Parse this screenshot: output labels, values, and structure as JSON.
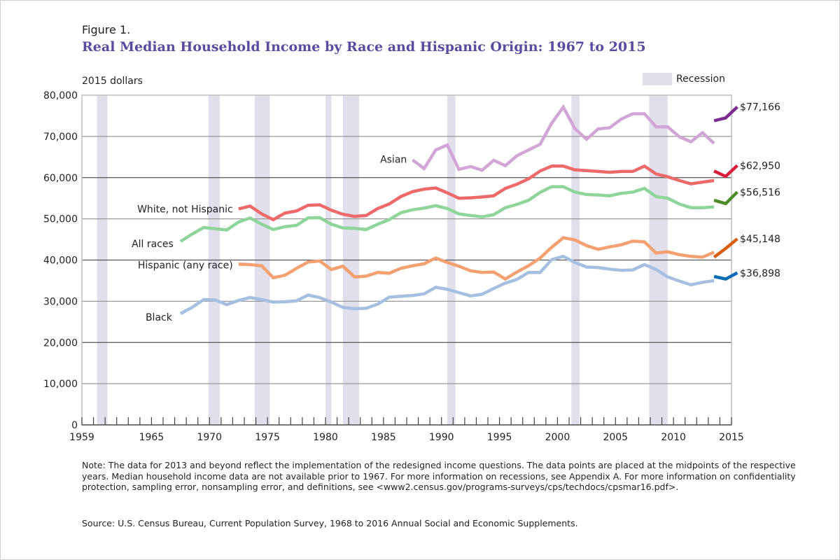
{
  "figure_label": "Figure 1.",
  "title": "Real Median Household Income by Race and Hispanic Origin: 1967 to 2015",
  "unit_label": "2015 dollars",
  "legend": {
    "recession_label": "Recession",
    "recession_color": "#e1dfeb"
  },
  "note": "Note: The data for 2013 and beyond reflect the implementation of the redesigned income questions. The data points are placed at the midpoints of the respective years. Median household income data are not available prior to 1967. For more information on recessions, see Appendix A. For more information on confidentiality protection, sampling error, nonsampling error, and definitions, see <www2.census.gov/programs-surveys/cps/techdocs/cpsmar16.pdf>.",
  "source": "Source: U.S. Census Bureau, Current Population Survey, 1968 to 2016 Annual Social and Economic Supplements.",
  "chart_data": {
    "type": "line",
    "title": "Real Median Household Income by Race and Hispanic Origin: 1967 to 2015",
    "xlabel": "",
    "ylabel": "2015 dollars",
    "xlim": [
      1959,
      2015
    ],
    "ylim": [
      0,
      80000
    ],
    "x_ticks": [
      "1959",
      "1965",
      "1970",
      "1975",
      "1980",
      "1985",
      "1990",
      "1995",
      "2000",
      "2005",
      "2010",
      "2015"
    ],
    "y_ticks": [
      "0",
      "10,000",
      "20,000",
      "30,000",
      "40,000",
      "50,000",
      "60,000",
      "70,000",
      "80,000"
    ],
    "grid": true,
    "recessions": [
      [
        1960.3,
        1961.2
      ],
      [
        1969.9,
        1970.9
      ],
      [
        1973.9,
        1975.2
      ],
      [
        1980.0,
        1980.5
      ],
      [
        1981.5,
        1982.9
      ],
      [
        1990.5,
        1991.2
      ],
      [
        2001.2,
        2001.9
      ],
      [
        2007.9,
        2009.5
      ]
    ],
    "series": [
      {
        "name": "Asian",
        "label": "Asian",
        "color": "#d1a6d6",
        "redesign_color": "#7b2a90",
        "end_label": "$77,166",
        "x": [
          1987,
          1988,
          1989,
          1990,
          1991,
          1992,
          1993,
          1994,
          1995,
          1996,
          1997,
          1998,
          1999,
          2000,
          2001,
          2002,
          2003,
          2004,
          2005,
          2006,
          2007,
          2008,
          2009,
          2010,
          2011,
          2012,
          2013
        ],
        "values": [
          64300,
          62200,
          66700,
          67900,
          62000,
          62700,
          61800,
          64200,
          62900,
          65300,
          66700,
          68100,
          73200,
          77100,
          71900,
          69300,
          71800,
          72100,
          74200,
          75500,
          75500,
          72300,
          72300,
          69900,
          68700,
          70900,
          68300
        ],
        "redesign_x": [
          2013,
          2014,
          2015
        ],
        "redesign_values": [
          73800,
          74500,
          77166
        ]
      },
      {
        "name": "White, not Hispanic",
        "label": "White, not Hispanic",
        "color": "#ee6a6a",
        "redesign_color": "#d81e3c",
        "end_label": "$62,950",
        "x": [
          1972,
          1973,
          1974,
          1975,
          1976,
          1977,
          1978,
          1979,
          1980,
          1981,
          1982,
          1983,
          1984,
          1985,
          1986,
          1987,
          1988,
          1989,
          1990,
          1991,
          1992,
          1993,
          1994,
          1995,
          1996,
          1997,
          1998,
          1999,
          2000,
          2001,
          2002,
          2003,
          2004,
          2005,
          2006,
          2007,
          2008,
          2009,
          2010,
          2011,
          2012,
          2013
        ],
        "values": [
          52400,
          53100,
          51200,
          49800,
          51400,
          51900,
          53300,
          53400,
          52100,
          51100,
          50600,
          50800,
          52500,
          53600,
          55400,
          56600,
          57200,
          57500,
          56300,
          55000,
          55100,
          55300,
          55600,
          57400,
          58400,
          59700,
          61600,
          62800,
          62800,
          61900,
          61700,
          61500,
          61300,
          61500,
          61500,
          62800,
          60900,
          60200,
          59300,
          58500,
          58900,
          59300
        ],
        "redesign_x": [
          2013,
          2014,
          2015
        ],
        "redesign_values": [
          61600,
          60300,
          62950
        ]
      },
      {
        "name": "All races",
        "label": "All races",
        "color": "#8fd49a",
        "redesign_color": "#4e8c2a",
        "end_label": "$56,516",
        "x": [
          1967,
          1968,
          1969,
          1970,
          1971,
          1972,
          1973,
          1974,
          1975,
          1976,
          1977,
          1978,
          1979,
          1980,
          1981,
          1982,
          1983,
          1984,
          1985,
          1986,
          1987,
          1988,
          1989,
          1990,
          1991,
          1992,
          1993,
          1994,
          1995,
          1996,
          1997,
          1998,
          1999,
          2000,
          2001,
          2002,
          2003,
          2004,
          2005,
          2006,
          2007,
          2008,
          2009,
          2010,
          2011,
          2012,
          2013
        ],
        "values": [
          44500,
          46300,
          47900,
          47600,
          47300,
          49200,
          50200,
          48700,
          47400,
          48100,
          48400,
          50200,
          50300,
          48700,
          47800,
          47700,
          47400,
          48700,
          49800,
          51500,
          52200,
          52600,
          53200,
          52500,
          51200,
          50800,
          50500,
          51000,
          52700,
          53500,
          54500,
          56400,
          57800,
          57800,
          56500,
          55900,
          55800,
          55600,
          56200,
          56500,
          57400,
          55400,
          55000,
          53600,
          52700,
          52700,
          52900
        ],
        "redesign_x": [
          2013,
          2014,
          2015
        ],
        "redesign_values": [
          54500,
          53700,
          56516
        ]
      },
      {
        "name": "Hispanic (any race)",
        "label": "Hispanic (any race)",
        "color": "#f4a070",
        "redesign_color": "#d95f0e",
        "end_label": "$45,148",
        "x": [
          1972,
          1973,
          1974,
          1975,
          1976,
          1977,
          1978,
          1979,
          1980,
          1981,
          1982,
          1983,
          1984,
          1985,
          1986,
          1987,
          1988,
          1989,
          1990,
          1991,
          1992,
          1993,
          1994,
          1995,
          1996,
          1997,
          1998,
          1999,
          2000,
          2001,
          2002,
          2003,
          2004,
          2005,
          2006,
          2007,
          2008,
          2009,
          2010,
          2011,
          2012,
          2013
        ],
        "values": [
          39000,
          38900,
          38600,
          35700,
          36300,
          38000,
          39500,
          39800,
          37700,
          38500,
          35900,
          36100,
          37000,
          36800,
          38000,
          38600,
          39100,
          40500,
          39400,
          38500,
          37400,
          37000,
          37100,
          35400,
          37100,
          38600,
          40500,
          43100,
          45400,
          44900,
          43500,
          42600,
          43200,
          43700,
          44600,
          44400,
          41700,
          42000,
          41300,
          40900,
          40700,
          41900
        ],
        "redesign_x": [
          2013,
          2014,
          2015
        ],
        "redesign_values": [
          40700,
          42800,
          45148
        ]
      },
      {
        "name": "Black",
        "label": "Black",
        "color": "#a6bfe0",
        "redesign_color": "#0b6cb3",
        "end_label": "$36,898",
        "x": [
          1967,
          1968,
          1969,
          1970,
          1971,
          1972,
          1973,
          1974,
          1975,
          1976,
          1977,
          1978,
          1979,
          1980,
          1981,
          1982,
          1983,
          1984,
          1985,
          1986,
          1987,
          1988,
          1989,
          1990,
          1991,
          1992,
          1993,
          1994,
          1995,
          1996,
          1997,
          1998,
          1999,
          2000,
          2001,
          2002,
          2003,
          2004,
          2005,
          2006,
          2007,
          2008,
          2009,
          2010,
          2011,
          2012,
          2013
        ],
        "values": [
          27000,
          28500,
          30400,
          30300,
          29200,
          30200,
          30900,
          30400,
          29800,
          29900,
          30100,
          31500,
          30900,
          29800,
          28500,
          28200,
          28300,
          29300,
          31000,
          31200,
          31400,
          31800,
          33400,
          32900,
          32100,
          31300,
          31700,
          33100,
          34400,
          35300,
          37000,
          37000,
          40100,
          40900,
          39400,
          38300,
          38200,
          37800,
          37500,
          37600,
          38900,
          37700,
          35900,
          34900,
          34000,
          34600,
          35000
        ],
        "redesign_x": [
          2013,
          2014,
          2015
        ],
        "redesign_values": [
          36000,
          35400,
          36898
        ]
      }
    ]
  }
}
